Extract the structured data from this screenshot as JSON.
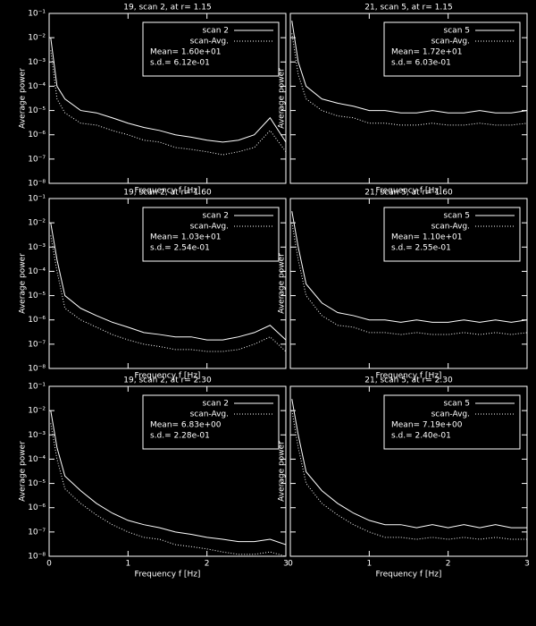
{
  "chart_data": [
    {
      "type": "line",
      "title": "19, scan 2, at r= 1.15",
      "xlabel": "Frequency f [Hz]",
      "ylabel": "Average power",
      "log_y": true,
      "legend": "upper right",
      "annotations": [
        "Mean= 1.60e+01",
        "s.d.= 6.12e-01"
      ],
      "xlim": [
        0,
        3
      ],
      "xticks": [
        0,
        1,
        2,
        3
      ],
      "ylim": [
        1e-08,
        0.1
      ],
      "yticks": [
        {
          "value": 1e-08,
          "label": "10⁻⁸"
        },
        {
          "value": 1e-07,
          "label": "10⁻⁷"
        },
        {
          "value": 1e-06,
          "label": "10⁻⁶"
        },
        {
          "value": 1e-05,
          "label": "10⁻⁵"
        },
        {
          "value": 0.0001,
          "label": "10⁻⁴"
        },
        {
          "value": 0.001,
          "label": "10⁻³"
        },
        {
          "value": 0.01,
          "label": "10⁻²"
        },
        {
          "value": 0.1,
          "label": "10⁻¹"
        }
      ],
      "x": [
        0.02,
        0.1,
        0.2,
        0.4,
        0.6,
        0.8,
        1.0,
        1.2,
        1.4,
        1.6,
        1.8,
        2.0,
        2.2,
        2.4,
        2.6,
        2.8,
        3.0
      ],
      "series": [
        {
          "name": "scan 2",
          "color": "#ffffff",
          "style": "solid",
          "values": [
            0.01,
            0.0001,
            3e-05,
            1e-05,
            8e-06,
            5e-06,
            3e-06,
            2e-06,
            1.5e-06,
            1e-06,
            8e-07,
            6e-07,
            5e-07,
            6e-07,
            1e-06,
            5e-06,
            5e-07
          ]
        },
        {
          "name": "scan-Avg.",
          "color": "#ffffff",
          "style": "dotted",
          "values": [
            0.003,
            3e-05,
            8e-06,
            3e-06,
            2.5e-06,
            1.5e-06,
            1e-06,
            6e-07,
            5e-07,
            3e-07,
            2.5e-07,
            2e-07,
            1.5e-07,
            2e-07,
            3e-07,
            1.5e-06,
            2e-07
          ]
        }
      ]
    },
    {
      "type": "line",
      "title": "21, scan 5, at r= 1.15",
      "xlabel": "Frequency f [Hz]",
      "ylabel": "Average power",
      "log_y": true,
      "legend": "upper right",
      "annotations": [
        "Mean= 1.72e+01",
        "s.d.= 6.03e-01"
      ],
      "xlim": [
        0,
        3
      ],
      "xticks": [
        0,
        1,
        2,
        3
      ],
      "ylim": [
        1e-08,
        0.1
      ],
      "yticks": [
        1e-08,
        1e-07,
        1e-06,
        1e-05,
        0.0001,
        0.001,
        0.01,
        0.1
      ],
      "x": [
        0.02,
        0.1,
        0.2,
        0.4,
        0.6,
        0.8,
        1.0,
        1.2,
        1.4,
        1.6,
        1.8,
        2.0,
        2.2,
        2.4,
        2.6,
        2.8,
        3.0
      ],
      "series": [
        {
          "name": "scan 5",
          "color": "#ffffff",
          "style": "solid",
          "values": [
            0.05,
            0.001,
            0.0001,
            3e-05,
            2e-05,
            1.5e-05,
            1e-05,
            1e-05,
            8e-06,
            8e-06,
            1e-05,
            8e-06,
            8e-06,
            1e-05,
            8e-06,
            8e-06,
            1e-05
          ]
        },
        {
          "name": "scan-Avg.",
          "color": "#ffffff",
          "style": "dotted",
          "values": [
            0.015,
            0.0003,
            3e-05,
            1e-05,
            6e-06,
            5e-06,
            3e-06,
            3e-06,
            2.5e-06,
            2.5e-06,
            3e-06,
            2.5e-06,
            2.5e-06,
            3e-06,
            2.5e-06,
            2.5e-06,
            3e-06
          ]
        }
      ]
    },
    {
      "type": "line",
      "title": "19, scan 2, at r= 1.60",
      "xlabel": "Frequency f [Hz]",
      "ylabel": "Average power",
      "log_y": true,
      "legend": "upper right",
      "annotations": [
        "Mean= 1.03e+01",
        "s.d.= 2.54e-01"
      ],
      "xlim": [
        0,
        3
      ],
      "xticks": [
        0,
        1,
        2,
        3
      ],
      "ylim": [
        1e-08,
        0.1
      ],
      "yticks": [
        {
          "value": 1e-08,
          "label": "10⁻⁸"
        },
        {
          "value": 1e-07,
          "label": "10⁻⁷"
        },
        {
          "value": 1e-06,
          "label": "10⁻⁶"
        },
        {
          "value": 1e-05,
          "label": "10⁻⁵"
        },
        {
          "value": 0.0001,
          "label": "10⁻⁴"
        },
        {
          "value": 0.001,
          "label": "10⁻³"
        },
        {
          "value": 0.01,
          "label": "10⁻²"
        },
        {
          "value": 0.1,
          "label": "10⁻¹"
        }
      ],
      "x": [
        0.02,
        0.1,
        0.2,
        0.4,
        0.6,
        0.8,
        1.0,
        1.2,
        1.4,
        1.6,
        1.8,
        2.0,
        2.2,
        2.4,
        2.6,
        2.8,
        3.0
      ],
      "series": [
        {
          "name": "scan 2",
          "color": "#ffffff",
          "style": "solid",
          "values": [
            0.01,
            0.0003,
            1e-05,
            3e-06,
            1.5e-06,
            8e-07,
            5e-07,
            3e-07,
            2.5e-07,
            2e-07,
            2e-07,
            1.5e-07,
            1.5e-07,
            2e-07,
            3e-07,
            6e-07,
            1.5e-07
          ]
        },
        {
          "name": "scan-Avg.",
          "color": "#ffffff",
          "style": "dotted",
          "values": [
            0.003,
            0.0001,
            3e-06,
            1e-06,
            5e-07,
            2.5e-07,
            1.5e-07,
            1e-07,
            8e-08,
            6e-08,
            6e-08,
            5e-08,
            5e-08,
            6e-08,
            1e-07,
            2e-07,
            5e-08
          ]
        }
      ]
    },
    {
      "type": "line",
      "title": "21, scan 5, at r= 1.60",
      "xlabel": "Frequency f [Hz]",
      "ylabel": "Average power",
      "log_y": true,
      "legend": "upper right",
      "annotations": [
        "Mean= 1.10e+01",
        "s.d.= 2.55e-01"
      ],
      "xlim": [
        0,
        3
      ],
      "xticks": [
        0,
        1,
        2,
        3
      ],
      "ylim": [
        1e-08,
        0.1
      ],
      "yticks": [
        1e-08,
        1e-07,
        1e-06,
        1e-05,
        0.0001,
        0.001,
        0.01,
        0.1
      ],
      "x": [
        0.02,
        0.1,
        0.2,
        0.4,
        0.6,
        0.8,
        1.0,
        1.2,
        1.4,
        1.6,
        1.8,
        2.0,
        2.2,
        2.4,
        2.6,
        2.8,
        3.0
      ],
      "series": [
        {
          "name": "scan 5",
          "color": "#ffffff",
          "style": "solid",
          "values": [
            0.03,
            0.001,
            3e-05,
            5e-06,
            2e-06,
            1.5e-06,
            1e-06,
            1e-06,
            8e-07,
            1e-06,
            8e-07,
            8e-07,
            1e-06,
            8e-07,
            1e-06,
            8e-07,
            1e-06
          ]
        },
        {
          "name": "scan-Avg.",
          "color": "#ffffff",
          "style": "dotted",
          "values": [
            0.01,
            0.0003,
            1e-05,
            1.5e-06,
            6e-07,
            5e-07,
            3e-07,
            3e-07,
            2.5e-07,
            3e-07,
            2.5e-07,
            2.5e-07,
            3e-07,
            2.5e-07,
            3e-07,
            2.5e-07,
            3e-07
          ]
        }
      ]
    },
    {
      "type": "line",
      "title": "19, scan 2, at r= 2.30",
      "xlabel": "Frequency f [Hz]",
      "ylabel": "Average power",
      "log_y": true,
      "legend": "upper right",
      "annotations": [
        "Mean= 6.83e+00",
        "s.d.= 2.28e-01"
      ],
      "xlim": [
        0,
        3
      ],
      "xticks": [
        0,
        1,
        2,
        3
      ],
      "ylim": [
        1e-08,
        0.1
      ],
      "yticks": [
        {
          "value": 1e-08,
          "label": "10⁻⁸"
        },
        {
          "value": 1e-07,
          "label": "10⁻⁷"
        },
        {
          "value": 1e-06,
          "label": "10⁻⁶"
        },
        {
          "value": 1e-05,
          "label": "10⁻⁵"
        },
        {
          "value": 0.0001,
          "label": "10⁻⁴"
        },
        {
          "value": 0.001,
          "label": "10⁻³"
        },
        {
          "value": 0.01,
          "label": "10⁻²"
        },
        {
          "value": 0.1,
          "label": "10⁻¹"
        }
      ],
      "x": [
        0.02,
        0.1,
        0.2,
        0.4,
        0.6,
        0.8,
        1.0,
        1.2,
        1.4,
        1.6,
        1.8,
        2.0,
        2.2,
        2.4,
        2.6,
        2.8,
        3.0
      ],
      "series": [
        {
          "name": "scan 2",
          "color": "#ffffff",
          "style": "solid",
          "values": [
            0.01,
            0.0003,
            2e-05,
            5e-06,
            1.5e-06,
            6e-07,
            3e-07,
            2e-07,
            1.5e-07,
            1e-07,
            8e-08,
            6e-08,
            5e-08,
            4e-08,
            4e-08,
            5e-08,
            3e-08
          ]
        },
        {
          "name": "scan-Avg.",
          "color": "#ffffff",
          "style": "dotted",
          "values": [
            0.003,
            0.0001,
            6e-06,
            1.5e-06,
            5e-07,
            2e-07,
            1e-07,
            6e-08,
            5e-08,
            3e-08,
            2.5e-08,
            2e-08,
            1.5e-08,
            1.2e-08,
            1.2e-08,
            1.5e-08,
            1e-08
          ]
        }
      ]
    },
    {
      "type": "line",
      "title": "21, scan 5, at r= 2.30",
      "xlabel": "Frequency f [Hz]",
      "ylabel": "Average power",
      "log_y": true,
      "legend": "upper right",
      "annotations": [
        "Mean= 7.19e+00",
        "s.d.= 2.40e-01"
      ],
      "xlim": [
        0,
        3
      ],
      "xticks": [
        0,
        1,
        2,
        3
      ],
      "ylim": [
        1e-08,
        0.1
      ],
      "yticks": [
        1e-08,
        1e-07,
        1e-06,
        1e-05,
        0.0001,
        0.001,
        0.01,
        0.1
      ],
      "x": [
        0.02,
        0.1,
        0.2,
        0.4,
        0.6,
        0.8,
        1.0,
        1.2,
        1.4,
        1.6,
        1.8,
        2.0,
        2.2,
        2.4,
        2.6,
        2.8,
        3.0
      ],
      "series": [
        {
          "name": "scan 5",
          "color": "#ffffff",
          "style": "solid",
          "values": [
            0.03,
            0.001,
            3e-05,
            5e-06,
            1.5e-06,
            6e-07,
            3e-07,
            2e-07,
            2e-07,
            1.5e-07,
            2e-07,
            1.5e-07,
            2e-07,
            1.5e-07,
            2e-07,
            1.5e-07,
            1.5e-07
          ]
        },
        {
          "name": "scan-Avg.",
          "color": "#ffffff",
          "style": "dotted",
          "values": [
            0.01,
            0.0003,
            1e-05,
            1.5e-06,
            5e-07,
            2e-07,
            1e-07,
            6e-08,
            6e-08,
            5e-08,
            6e-08,
            5e-08,
            6e-08,
            5e-08,
            6e-08,
            5e-08,
            5e-08
          ]
        }
      ]
    }
  ]
}
